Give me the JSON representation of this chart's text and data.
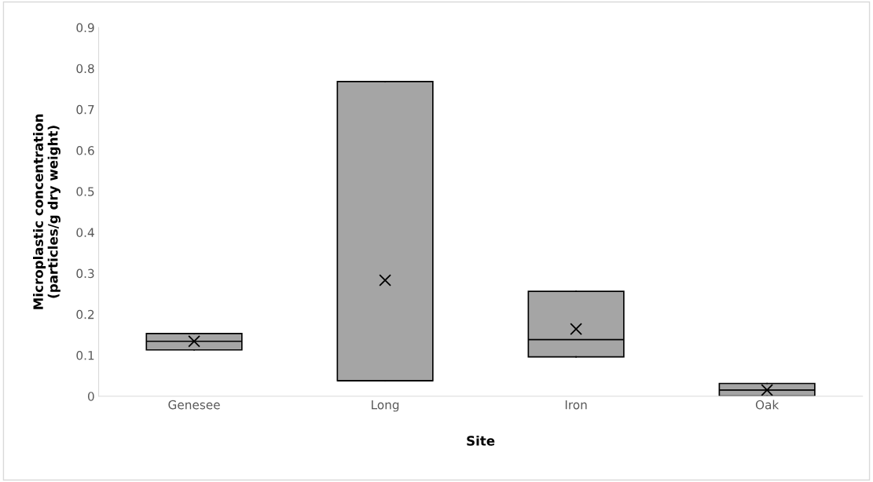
{
  "chart_data": {
    "type": "box",
    "xlabel": "Site",
    "ylabel": "Microplastic concentration\n(particles/g dry weight)",
    "categories": [
      "Genesee",
      "Long",
      "Iron",
      "Oak"
    ],
    "boxes": [
      {
        "low": 0.113,
        "q1": 0.113,
        "median": 0.134,
        "q3": 0.153,
        "high": 0.153,
        "mean": 0.134
      },
      {
        "low": 0.038,
        "q1": 0.038,
        "median": 0.038,
        "q3": 0.768,
        "high": 0.768,
        "mean": 0.283
      },
      {
        "low": 0.096,
        "q1": 0.096,
        "median": 0.138,
        "q3": 0.256,
        "high": 0.256,
        "mean": 0.164
      },
      {
        "low": 0.0,
        "q1": 0.0,
        "median": 0.015,
        "q3": 0.031,
        "high": 0.031,
        "mean": 0.015
      }
    ],
    "color": "#a5a5a5",
    "ylim": [
      0,
      0.9
    ],
    "yticks": [
      0,
      0.1,
      0.2,
      0.3,
      0.4,
      0.5,
      0.6,
      0.7,
      0.8,
      0.9
    ],
    "grid": false,
    "legend": false
  }
}
